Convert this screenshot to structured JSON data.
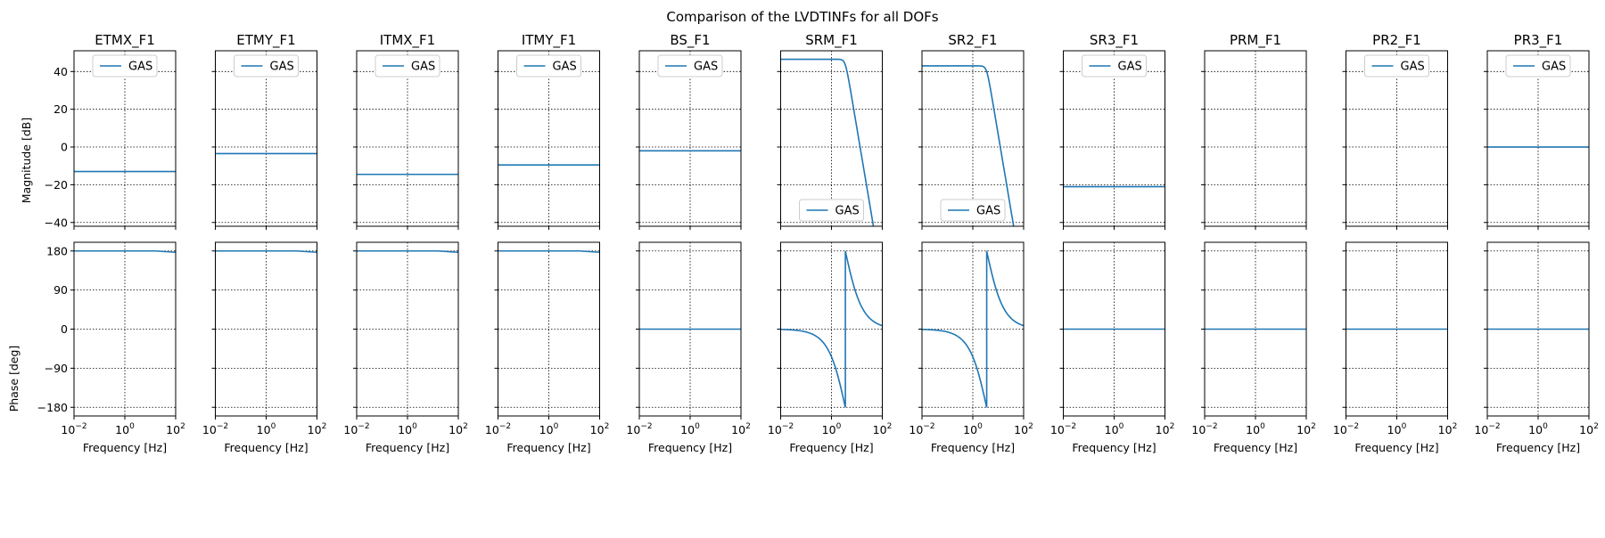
{
  "figure": {
    "title": "Comparison of the LVDTINFs for all DOFs"
  },
  "colors": {
    "line": "#1f77b4",
    "axes": "#000000",
    "grid": "#000000",
    "legend_border": "#cccccc"
  },
  "chart_data": {
    "type": "line",
    "x_scale": "log",
    "xlim": [
      0.01,
      100
    ],
    "xlabel": "Frequency [Hz]",
    "xticks": [
      0.01,
      1,
      100
    ],
    "xtick_labels": [
      "10^-2",
      "10^0",
      "10^2"
    ],
    "magnitude": {
      "ylabel": "Magnitude [dB]",
      "ylim": [
        -42,
        51
      ],
      "yticks": [
        40,
        20,
        0,
        -20,
        -40
      ],
      "ytick_labels": [
        "40",
        "20",
        "0",
        "−20",
        "−40"
      ]
    },
    "phase": {
      "ylabel": "Phase [deg]",
      "ylim": [
        -200,
        200
      ],
      "yticks": [
        180,
        90,
        0,
        -90,
        -180
      ],
      "ytick_labels": [
        "180",
        "90",
        "0",
        "−90",
        "−180"
      ]
    },
    "grid": true,
    "grid_style": "dotted",
    "panels": [
      {
        "name": "ETMX_F1",
        "legend": "GAS",
        "legend_loc": "upper center",
        "kind": "flat",
        "magnitude_db": -13,
        "phase_deg": 180
      },
      {
        "name": "ETMY_F1",
        "legend": "GAS",
        "legend_loc": "upper center",
        "kind": "flat",
        "magnitude_db": -3.5,
        "phase_deg": 180
      },
      {
        "name": "ITMX_F1",
        "legend": "GAS",
        "legend_loc": "upper center",
        "kind": "flat",
        "magnitude_db": -14.5,
        "phase_deg": 180
      },
      {
        "name": "ITMY_F1",
        "legend": "GAS",
        "legend_loc": "upper center",
        "kind": "flat",
        "magnitude_db": -9.5,
        "phase_deg": 180
      },
      {
        "name": "BS_F1",
        "legend": "GAS",
        "legend_loc": "upper center",
        "kind": "flat",
        "magnitude_db": -2,
        "phase_deg": 0
      },
      {
        "name": "SRM_F1",
        "legend": "GAS",
        "legend_loc": "lower center",
        "kind": "lowpass",
        "dc_gain_db": 46.5,
        "corner_hz": 3.5,
        "end_db": -33
      },
      {
        "name": "SR2_F1",
        "legend": "GAS",
        "legend_loc": "lower center",
        "kind": "lowpass",
        "dc_gain_db": 43,
        "corner_hz": 3.5,
        "end_db": -38
      },
      {
        "name": "SR3_F1",
        "legend": "GAS",
        "legend_loc": "upper center",
        "kind": "flat",
        "magnitude_db": -21,
        "phase_deg": 0
      },
      {
        "name": "PRM_F1",
        "legend": "",
        "legend_loc": "upper center",
        "kind": "none",
        "phase_deg": 0
      },
      {
        "name": "PR2_F1",
        "legend": "GAS",
        "legend_loc": "upper center",
        "kind": "none",
        "phase_deg": 0
      },
      {
        "name": "PR3_F1",
        "legend": "GAS",
        "legend_loc": "upper center",
        "kind": "flat",
        "magnitude_db": 0,
        "phase_deg": 0
      }
    ]
  }
}
